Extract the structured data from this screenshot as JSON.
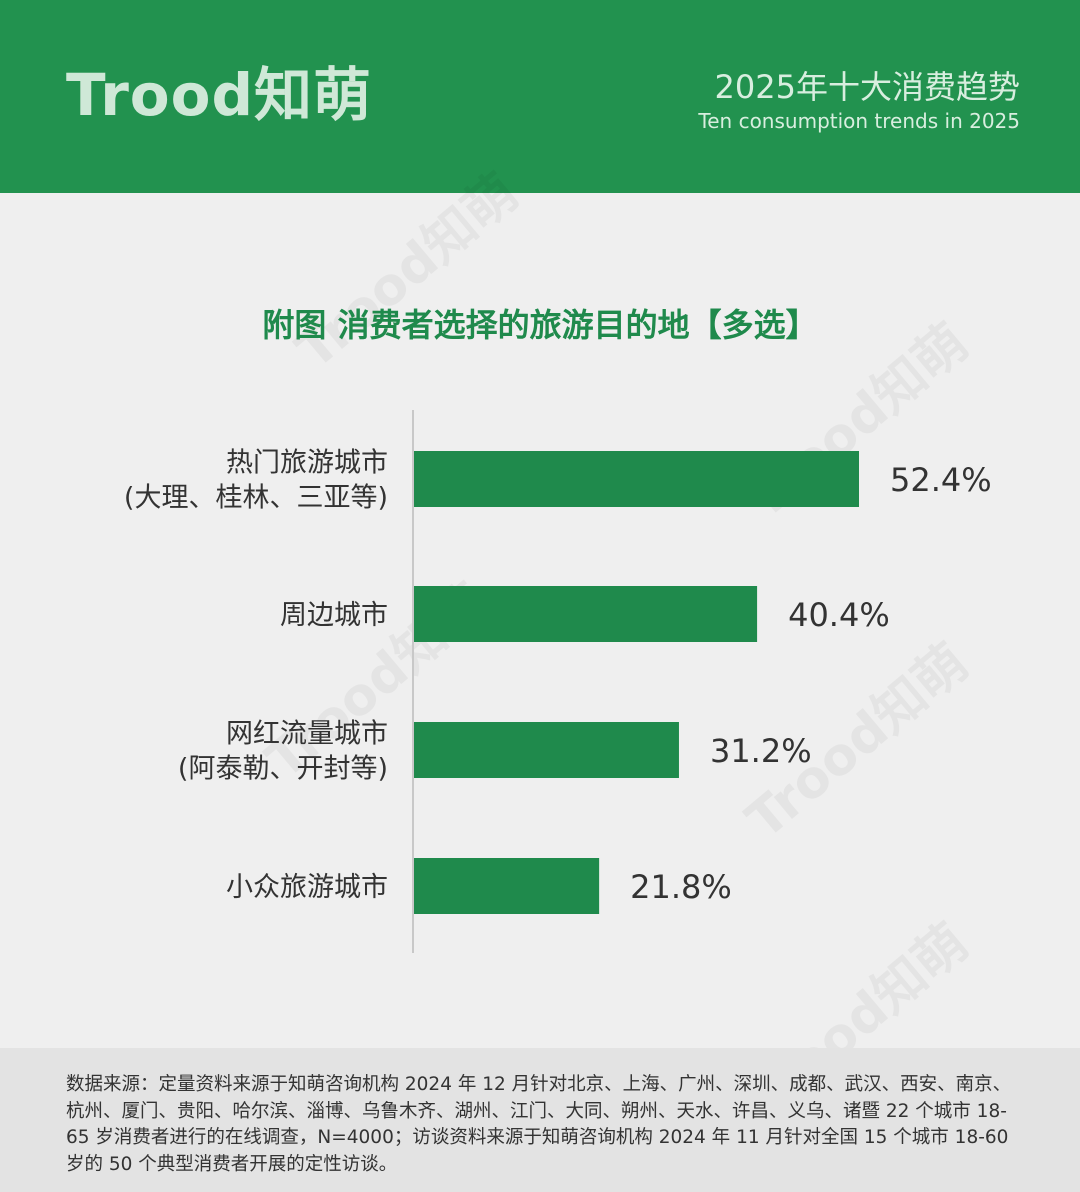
{
  "header": {
    "logo": "Trood知萌",
    "title_cn": "2025年十大消费趋势",
    "title_en": "Ten consumption trends in 2025"
  },
  "watermark": "Trood知萌",
  "chart_data": {
    "type": "bar",
    "orientation": "horizontal",
    "title": "附图  消费者选择的旅游目的地【多选】",
    "categories": [
      [
        "热门旅游城市",
        "(大理、桂林、三亚等)"
      ],
      [
        "周边城市"
      ],
      [
        "网红流量城市",
        "(阿泰勒、开封等)"
      ],
      [
        "小众旅游城市"
      ]
    ],
    "values": [
      52.4,
      40.4,
      31.2,
      21.8
    ],
    "value_labels": [
      "52.4%",
      "40.4%",
      "31.2%",
      "21.8%"
    ],
    "unit": "%",
    "xlim": [
      0,
      100
    ],
    "bar_color": "#1f8a4c",
    "grid": false,
    "legend": "none"
  },
  "footer": {
    "source": "数据来源：定量资料来源于知萌咨询机构 2024 年 12 月针对北京、上海、广州、深圳、成都、武汉、西安、南京、杭州、厦门、贵阳、哈尔滨、淄博、乌鲁木齐、湖州、江门、大同、朔州、天水、许昌、义乌、诸暨 22 个城市 18-65 岁消费者进行的在线调查，N=4000；访谈资料来源于知萌咨询机构 2024 年 11 月针对全国 15 个城市 18-60 岁的 50 个典型消费者开展的定性访谈。"
  }
}
